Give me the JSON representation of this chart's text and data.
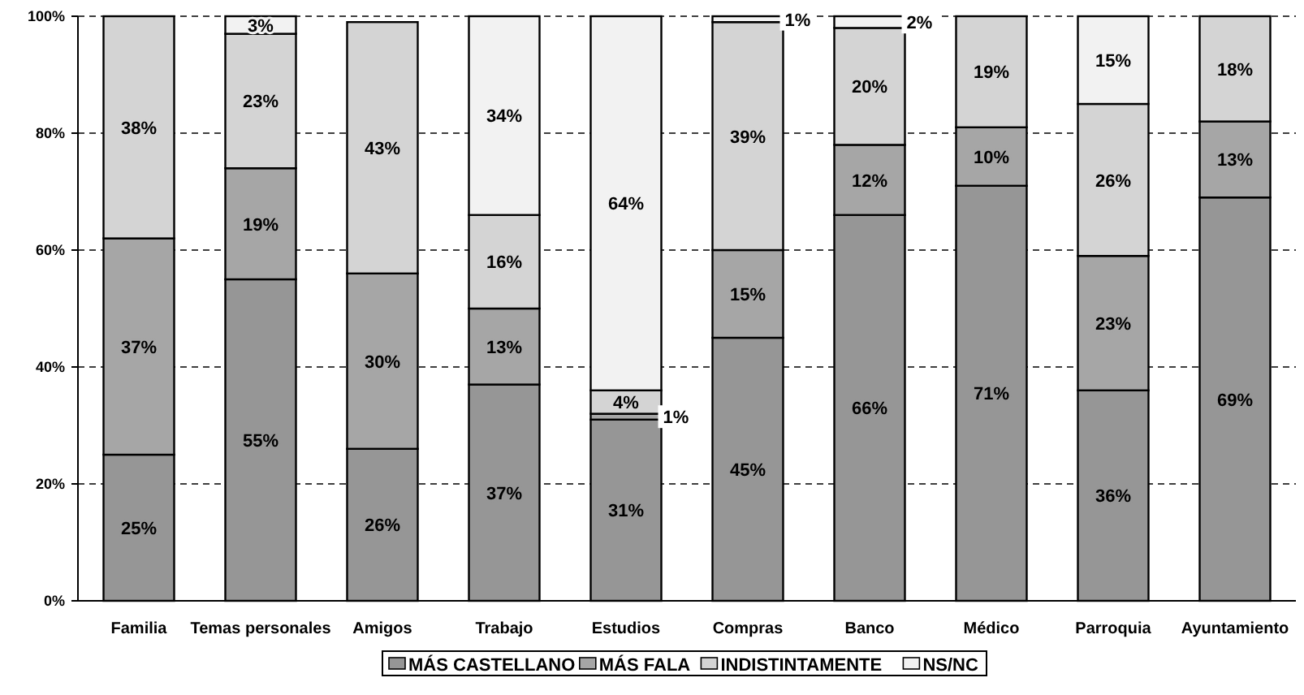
{
  "chart_data": {
    "type": "bar",
    "stacked": true,
    "categories": [
      "Familia",
      "Temas personales",
      "Amigos",
      "Trabajo",
      "Estudios",
      "Compras",
      "Banco",
      "Médico",
      "Parroquia",
      "Ayuntamiento"
    ],
    "series": [
      {
        "name": "MÁS CASTELLANO",
        "color": "#969696",
        "values": [
          25,
          55,
          26,
          37,
          31,
          45,
          66,
          71,
          36,
          69
        ],
        "value_labels": [
          "25%",
          "55%",
          "26%",
          "37%",
          "31%",
          "45%",
          "66%",
          "71%",
          "36%",
          "69%"
        ]
      },
      {
        "name": "MÁS FALA",
        "color": "#a6a6a6",
        "values": [
          37,
          19,
          30,
          13,
          1,
          15,
          12,
          10,
          23,
          13
        ],
        "value_labels": [
          "37%",
          "19%",
          "30%",
          "13%",
          "1%",
          "15%",
          "12%",
          "10%",
          "23%",
          "13%"
        ]
      },
      {
        "name": "INDISTINTAMENTE",
        "color": "#d4d4d4",
        "values": [
          38,
          23,
          43,
          16,
          4,
          39,
          20,
          19,
          26,
          18
        ],
        "value_labels": [
          "38%",
          "23%",
          "43%",
          "16%",
          "4%",
          "39%",
          "20%",
          "19%",
          "26%",
          "18%"
        ]
      },
      {
        "name": "NS/NC",
        "color": "#f2f2f2",
        "values": [
          null,
          3,
          null,
          34,
          64,
          1,
          2,
          null,
          15,
          null
        ],
        "value_labels": [
          null,
          "3%",
          null,
          "34%",
          "64%",
          "1%",
          "2%",
          null,
          "15%",
          null
        ]
      }
    ],
    "ylim": [
      0,
      100
    ],
    "yticks": [
      {
        "value": 0,
        "label": "0%"
      },
      {
        "value": 20,
        "label": "20%"
      },
      {
        "value": 40,
        "label": "40%"
      },
      {
        "value": 60,
        "label": "60%"
      },
      {
        "value": 80,
        "label": "80%"
      },
      {
        "value": 100,
        "label": "100%"
      }
    ],
    "grid": "y",
    "legend": "bottom"
  }
}
